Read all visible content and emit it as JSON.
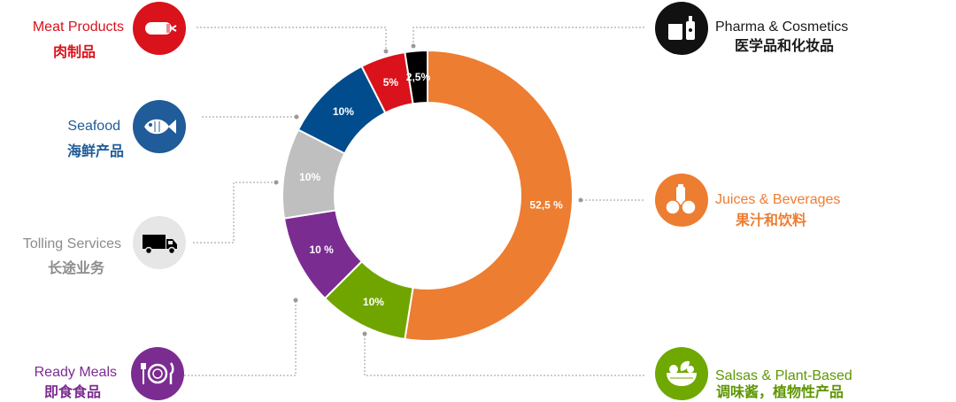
{
  "chart_data": {
    "type": "pie",
    "donut": true,
    "categories": [
      "Juices & Beverages",
      "Salsas & Plant-Based",
      "Ready Meals",
      "Tolling Services",
      "Seafood",
      "Meat Products",
      "Pharma & Cosmetics"
    ],
    "values": [
      52.5,
      10,
      10,
      10,
      10,
      5,
      2.5
    ],
    "value_labels": [
      "52,5 %",
      "10%",
      "10 %",
      "10%",
      "10%",
      "5%",
      "2,5%"
    ],
    "colors": [
      "#ED7D31",
      "#70A500",
      "#7B2C91",
      "#BFBFBF",
      "#004C8C",
      "#D9121B",
      "#000000"
    ]
  },
  "categories": {
    "meat": {
      "en": "Meat Products",
      "zh": "肉制品",
      "color": "#D9121B",
      "icon": "sausage-icon"
    },
    "seafood": {
      "en": "Seafood",
      "zh": "海鲜产品",
      "color": "#1F5C99",
      "icon": "fish-icon"
    },
    "tolling": {
      "en": "Tolling Services",
      "zh": "长途业务",
      "color": "#8C8C8C",
      "icon": "truck-icon"
    },
    "ready": {
      "en": "Ready Meals",
      "zh": "即食食品",
      "color": "#7B2C91",
      "icon": "plate-cutlery-icon"
    },
    "pharma": {
      "en": "Pharma & Cosmetics",
      "zh": "医学品和化妆品",
      "color": "#1A1A1A",
      "icon": "cosmetic-bottles-icon"
    },
    "juices": {
      "en": "Juices & Beverages",
      "zh": "果汁和饮料",
      "color": "#ED7D31",
      "icon": "juice-fruit-icon"
    },
    "salsas": {
      "en": "Salsas & Plant-Based",
      "zh": "调味酱，植物性产品",
      "color": "#5E9600",
      "icon": "salad-bowl-icon"
    }
  }
}
